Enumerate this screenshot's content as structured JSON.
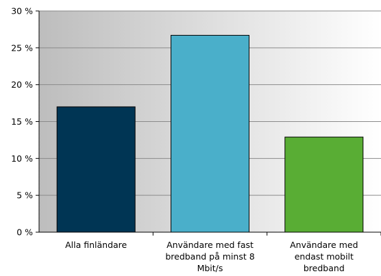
{
  "chart_data": {
    "type": "bar",
    "title": "",
    "xlabel": "",
    "ylabel": "",
    "ylim": [
      0,
      30
    ],
    "yticks": [
      0,
      5,
      10,
      15,
      20,
      25,
      30
    ],
    "ytick_labels": [
      "0 %",
      "5 %",
      "10 %",
      "15 %",
      "20 %",
      "25 %",
      "30 %"
    ],
    "grid": "horizontal",
    "background": "horizontal gradient, gray to white",
    "categories": [
      [
        "Alla finländare"
      ],
      [
        "Användare med fast",
        "bredband på minst 8",
        "Mbit/s"
      ],
      [
        "Användare med",
        "endast mobilt",
        "bredband"
      ]
    ],
    "values": [
      17,
      26.7,
      12.9
    ],
    "colors": [
      "#003554",
      "#4aafca",
      "#59ad34"
    ]
  }
}
